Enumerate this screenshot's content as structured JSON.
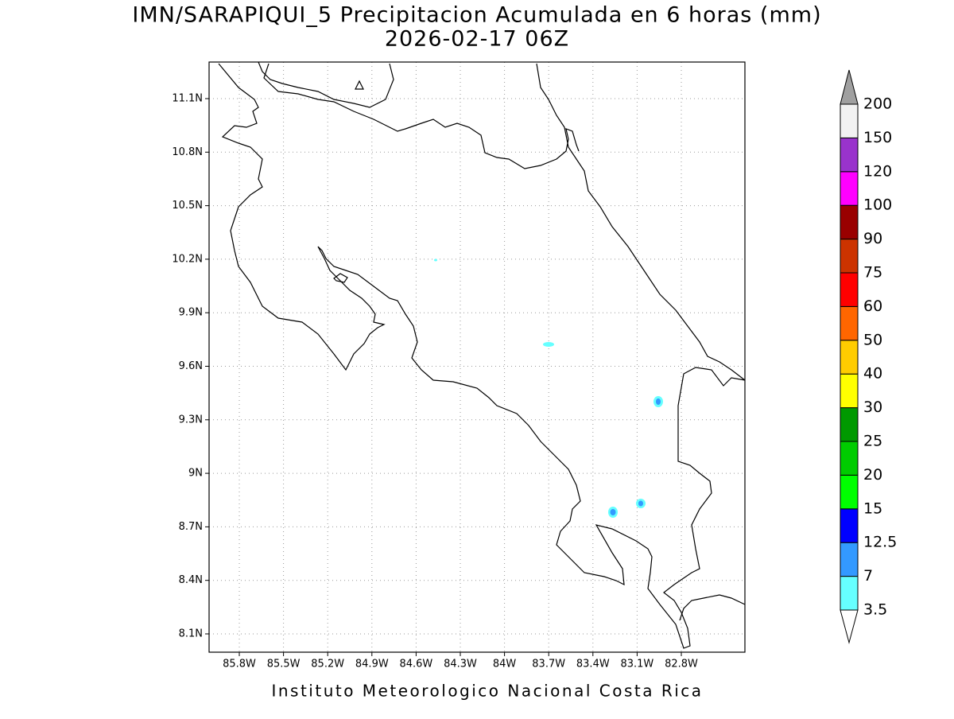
{
  "title": "IMN/SARAPIQUI_5 Precipitacion Acumulada en 6 horas (mm)",
  "subtitle": "2026-02-17 06Z",
  "x_axis": {
    "ticks": [
      "85.8W",
      "85.5W",
      "85.2W",
      "84.9W",
      "84.6W",
      "84.3W",
      "84W",
      "83.7W",
      "83.4W",
      "83.1W",
      "82.8W"
    ]
  },
  "y_axis": {
    "ticks": [
      "11.1N",
      "10.8N",
      "10.5N",
      "10.2N",
      "9.9N",
      "9.6N",
      "9.3N",
      "9N",
      "8.7N",
      "8.4N",
      "8.1N"
    ]
  },
  "colorbar": {
    "levels": [
      "3.5",
      "7",
      "12.5",
      "15",
      "20",
      "25",
      "30",
      "40",
      "50",
      "60",
      "75",
      "90",
      "100",
      "120",
      "150",
      "200"
    ],
    "colors": [
      "#ffffff",
      "#66ffff",
      "#3399ff",
      "#0000ff",
      "#00ff00",
      "#00cc00",
      "#009900",
      "#ffff00",
      "#ffcc00",
      "#ff6600",
      "#ff0000",
      "#cc3300",
      "#990000",
      "#ff00ff",
      "#9933cc",
      "#f2f2f2",
      "#a0a0a0"
    ]
  },
  "footer": "Instituto Meteorologico Nacional Costa Rica"
}
